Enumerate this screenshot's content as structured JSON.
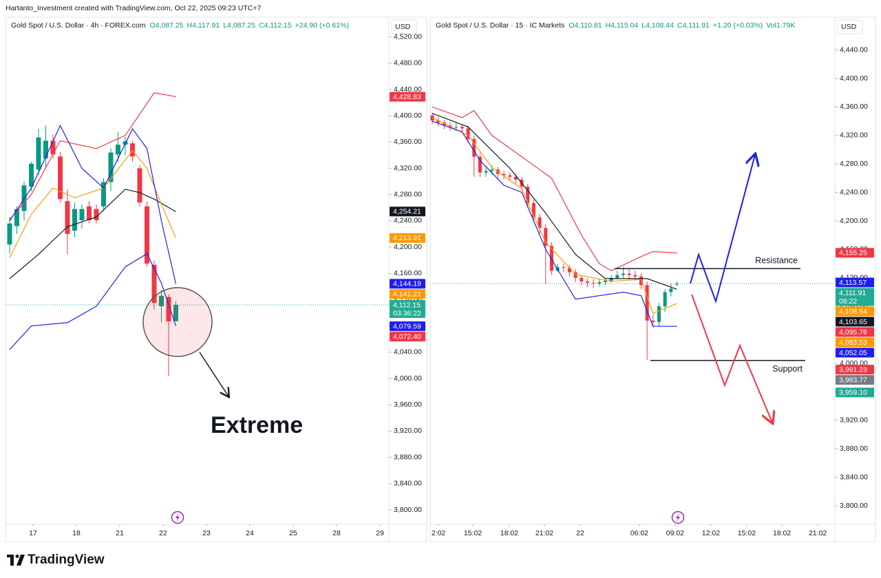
{
  "header": {
    "credit": "Hartanto_Investment created with TradingView.com, Oct 22, 2025 09:23 UTC+7"
  },
  "footer": {
    "logo": "TradingView"
  },
  "chart_data": [
    {
      "type": "candlestick",
      "title": "Gold Spot / U.S. Dollar · 4h · FOREX.com",
      "stats": [
        "O4,087.25",
        "H4,117.91",
        "L4,087.25",
        "C4,112.15",
        "+24.90 (+0.61%)"
      ],
      "currency": "USD",
      "up_color": "#089981",
      "down_color": "#f23645",
      "ylim": [
        3778,
        4550
      ],
      "yticks": [
        {
          "value": 3800,
          "label": "3,800.00"
        },
        {
          "value": 3840,
          "label": "3,840.00"
        },
        {
          "value": 3880,
          "label": "3,880.00"
        },
        {
          "value": 3920,
          "label": "3,920.00"
        },
        {
          "value": 3960,
          "label": "3,960.00"
        },
        {
          "value": 4000,
          "label": "4,000.00"
        },
        {
          "value": 4040,
          "label": "4,040.00"
        },
        {
          "value": 4080,
          "label": "4,080.00"
        },
        {
          "value": 4120,
          "label": "4,120.00"
        },
        {
          "value": 4160,
          "label": "4,160.00"
        },
        {
          "value": 4200,
          "label": "4,200.00"
        },
        {
          "value": 4240,
          "label": "4,240.00"
        },
        {
          "value": 4280,
          "label": "4,280.00"
        },
        {
          "value": 4320,
          "label": "4,320.00"
        },
        {
          "value": 4360,
          "label": "4,360.00"
        },
        {
          "value": 4400,
          "label": "4,400.00"
        },
        {
          "value": 4440,
          "label": "4,440.00"
        },
        {
          "value": 4480,
          "label": "4,480.00"
        },
        {
          "value": 4520,
          "label": "4,520.00"
        }
      ],
      "xlim": [
        -0.57,
        52.48
      ],
      "xticks": [
        {
          "value": 3.24,
          "label": "17"
        },
        {
          "value": 9.24,
          "label": "18"
        },
        {
          "value": 15.24,
          "label": "21"
        },
        {
          "value": 21.24,
          "label": "22"
        },
        {
          "value": 27.24,
          "label": "23"
        },
        {
          "value": 33.24,
          "label": "24"
        },
        {
          "value": 39.24,
          "label": "25"
        },
        {
          "value": 45.24,
          "label": "28"
        },
        {
          "value": 51.24,
          "label": "29"
        }
      ],
      "open": [
        4204,
        4232,
        4255,
        4292,
        4318,
        4335,
        4362,
        4338,
        4270,
        4225,
        4241,
        4262,
        4258,
        4262,
        4299,
        4341,
        4356,
        4358,
        4320,
        4262,
        4173,
        4110,
        4124,
        4087.25
      ],
      "high": [
        4246,
        4262,
        4300,
        4330,
        4380,
        4385,
        4372,
        4345,
        4288,
        4268,
        4265,
        4270,
        4265,
        4305,
        4350,
        4375,
        4368,
        4362,
        4325,
        4270,
        4180,
        4135,
        4128,
        4117.91
      ],
      "low": [
        4190,
        4220,
        4240,
        4285,
        4310,
        4320,
        4335,
        4268,
        4189,
        4215,
        4228,
        4236,
        4236,
        4255,
        4285,
        4330,
        4340,
        4330,
        4262,
        4170,
        4105,
        4085,
        4004,
        4087.25
      ],
      "close": [
        4236,
        4258,
        4294,
        4327,
        4367,
        4362,
        4341,
        4273,
        4220,
        4258,
        4258,
        4241,
        4241,
        4299,
        4344,
        4356,
        4361,
        4338,
        4268,
        4175,
        4115,
        4126,
        4087,
        4112.15
      ],
      "lines": [
        {
          "color": "#131722",
          "x": [
            0,
            4,
            8,
            12,
            16,
            18,
            20,
            23
          ],
          "values": [
            4152,
            4189,
            4231,
            4246,
            4288,
            4283,
            4273,
            4254
          ]
        },
        {
          "color": "#ff9800",
          "x": [
            0,
            3,
            6,
            9,
            13,
            17,
            19,
            21,
            23
          ],
          "values": [
            4184,
            4250,
            4290,
            4275,
            4290,
            4347,
            4320,
            4265,
            4214
          ]
        },
        {
          "color": "#f23645",
          "x": [
            0,
            3,
            7,
            12,
            16,
            20,
            23
          ],
          "values": [
            4242,
            4280,
            4362,
            4350,
            4370,
            4435,
            4429
          ]
        },
        {
          "color": "#1e1ef0",
          "x": [
            0,
            3,
            7,
            10,
            13,
            17,
            19,
            21,
            23
          ],
          "values": [
            4240,
            4290,
            4385,
            4320,
            4290,
            4380,
            4350,
            4240,
            4144
          ]
        },
        {
          "color": "#1e1ef0",
          "x": [
            0,
            3,
            8,
            12,
            16,
            19,
            21,
            23
          ],
          "values": [
            4044,
            4080,
            4085,
            4110,
            4170,
            4190,
            4145,
            4080
          ]
        }
      ],
      "price_tags": [
        {
          "value": 4428.83,
          "label": "4,428.83",
          "color": "#f23645"
        },
        {
          "value": 4254.21,
          "label": "4,254.21",
          "color": "#131722"
        },
        {
          "value": 4213.91,
          "label": "4,213.91",
          "color": "#ff9800"
        },
        {
          "value": 4144.19,
          "label": "4,144.19",
          "color": "#1e1ef0"
        },
        {
          "value": 4141.21,
          "label": "4,141.21",
          "color": "#ff9800"
        },
        {
          "value": 4112.15,
          "label": "4,112.15",
          "color": "#22ab94",
          "sublabel": "03:36:22"
        },
        {
          "value": 4079.59,
          "label": "4,079.59",
          "color": "#1e1ef0"
        },
        {
          "value": 4072.4,
          "label": "4,072.40",
          "color": "#f23645"
        }
      ],
      "annotations": [
        "Extreme"
      ]
    },
    {
      "type": "candlestick",
      "title": "Gold Spot / U.S. Dollar · 15 · IC Markets",
      "stats": [
        "O4,110.81",
        "H4,115.04",
        "L4,108.44",
        "C4,111.91",
        "+1.20 (+0.03%)",
        "Vol1.79K"
      ],
      "currency": "USD",
      "up_color": "#089981",
      "down_color": "#f23645",
      "ylim": [
        3774,
        4486
      ],
      "yticks": [
        {
          "value": 3800,
          "label": "3,800.00"
        },
        {
          "value": 3840,
          "label": "3,840.00"
        },
        {
          "value": 3880,
          "label": "3,880.00"
        },
        {
          "value": 3920,
          "label": "3,920.00"
        },
        {
          "value": 3960,
          "label": "3,960.00"
        },
        {
          "value": 4000,
          "label": "4,000.00"
        },
        {
          "value": 4040,
          "label": "4,040.00"
        },
        {
          "value": 4080,
          "label": "4,080.00"
        },
        {
          "value": 4120,
          "label": "4,120.00"
        },
        {
          "value": 4160,
          "label": "4,160.00"
        },
        {
          "value": 4200,
          "label": "4,200.00"
        },
        {
          "value": 4240,
          "label": "4,240.00"
        },
        {
          "value": 4280,
          "label": "4,280.00"
        },
        {
          "value": 4320,
          "label": "4,320.00"
        },
        {
          "value": 4360,
          "label": "4,360.00"
        },
        {
          "value": 4400,
          "label": "4,400.00"
        },
        {
          "value": 4440,
          "label": "4,440.00"
        }
      ],
      "xlim": [
        -0.35,
        67.47
      ],
      "xticks": [
        {
          "value": 1.04,
          "label": "2:02"
        },
        {
          "value": 6.8,
          "label": "15:02"
        },
        {
          "value": 12.9,
          "label": "18:02"
        },
        {
          "value": 18.8,
          "label": "21:02"
        },
        {
          "value": 24.8,
          "label": "22"
        },
        {
          "value": 34.7,
          "label": "06:02"
        },
        {
          "value": 40.7,
          "label": "09:02"
        },
        {
          "value": 46.7,
          "label": "12:02"
        },
        {
          "value": 52.7,
          "label": "15:02"
        },
        {
          "value": 58.6,
          "label": "18:02"
        },
        {
          "value": 64.6,
          "label": "21:02"
        }
      ],
      "open": [
        4348,
        4341,
        4338,
        4334,
        4332,
        4332,
        4330,
        4315,
        4290,
        4268,
        4270,
        4272,
        4266,
        4264,
        4262,
        4258,
        4248,
        4225,
        4205,
        4190,
        4165,
        4130,
        4135,
        4134,
        4128,
        4120,
        4115,
        4113,
        4112,
        4114,
        4116,
        4120,
        4124,
        4126,
        4124,
        4122,
        4110,
        4060,
        4058,
        4080,
        4100,
        4110.81
      ],
      "high": [
        4352,
        4346,
        4342,
        4339,
        4338,
        4336,
        4334,
        4320,
        4295,
        4276,
        4278,
        4276,
        4270,
        4268,
        4266,
        4262,
        4252,
        4230,
        4210,
        4195,
        4170,
        4140,
        4140,
        4138,
        4132,
        4124,
        4119,
        4118,
        4118,
        4120,
        4124,
        4130,
        4135,
        4132,
        4130,
        4127,
        4115,
        4068,
        4085,
        4104,
        4112,
        4115.04
      ],
      "low": [
        4336,
        4333,
        4329,
        4327,
        4326,
        4325,
        4310,
        4262,
        4262,
        4262,
        4265,
        4260,
        4258,
        4256,
        4252,
        4242,
        4218,
        4198,
        4182,
        4112,
        4124,
        4128,
        4128,
        4122,
        4114,
        4109,
        4107,
        4106,
        4108,
        4110,
        4113,
        4118,
        4120,
        4118,
        4116,
        4104,
        4005,
        4050,
        4052,
        4072,
        4094,
        4108.44
      ],
      "close": [
        4341,
        4338,
        4334,
        4332,
        4332,
        4330,
        4315,
        4290,
        4268,
        4270,
        4272,
        4266,
        4264,
        4262,
        4258,
        4248,
        4225,
        4205,
        4190,
        4165,
        4130,
        4135,
        4134,
        4128,
        4120,
        4115,
        4113,
        4112,
        4114,
        4116,
        4120,
        4124,
        4126,
        4124,
        4122,
        4110,
        4060,
        4058,
        4080,
        4100,
        4105,
        4111.91
      ],
      "lines": [
        {
          "color": "#131722",
          "x": [
            0,
            6,
            13,
            19,
            24,
            29,
            36,
            41
          ],
          "values": [
            4351,
            4332,
            4274,
            4211,
            4153,
            4119,
            4119,
            4104
          ]
        },
        {
          "color": "#ff9800",
          "x": [
            0,
            6,
            10,
            15,
            19,
            24,
            30,
            35,
            37,
            41
          ],
          "values": [
            4345,
            4320,
            4275,
            4245,
            4170,
            4125,
            4115,
            4118,
            4070,
            4084
          ]
        },
        {
          "color": "#f23645",
          "x": [
            0,
            5,
            7,
            10,
            15,
            20,
            25,
            28,
            30,
            35,
            37,
            41
          ],
          "values": [
            4360,
            4345,
            4355,
            4320,
            4290,
            4260,
            4180,
            4140,
            4130,
            4150,
            4157,
            4155
          ]
        },
        {
          "color": "#1e1ef0",
          "x": [
            0,
            5,
            8,
            12,
            15,
            19,
            24,
            28,
            32,
            35,
            37,
            41
          ],
          "values": [
            4340,
            4325,
            4285,
            4250,
            4240,
            4160,
            4090,
            4095,
            4100,
            4095,
            4052,
            4052
          ]
        }
      ],
      "price_tags": [
        {
          "value": 4155.25,
          "label": "4,155.25",
          "color": "#f23645"
        },
        {
          "value": 4113.57,
          "label": "4,113.57",
          "color": "#1e1ef0"
        },
        {
          "value": 4111.91,
          "label": "4,111.91",
          "color": "#22ab94",
          "sublabel": "08:22"
        },
        {
          "value": 4108.54,
          "label": "4,108.54",
          "color": "#ff9800"
        },
        {
          "value": 4103.65,
          "label": "4,103.65",
          "color": "#131722"
        },
        {
          "value": 4095.76,
          "label": "4,095.76",
          "color": "#f23645"
        },
        {
          "value": 4083.53,
          "label": "4,083.53",
          "color": "#ff9800"
        },
        {
          "value": 4052.05,
          "label": "4,052.05",
          "color": "#1e1ef0"
        },
        {
          "value": 3991.23,
          "label": "3,991.23",
          "color": "#f23645"
        },
        {
          "value": 3983.77,
          "label": "3,983.77",
          "color": "#787b86"
        },
        {
          "value": 3959.1,
          "label": "3,959.10",
          "color": "#22ab94"
        }
      ],
      "levels": [
        {
          "label": "Resistance",
          "value": 4133
        },
        {
          "label": "Support",
          "value": 4004
        }
      ]
    }
  ]
}
